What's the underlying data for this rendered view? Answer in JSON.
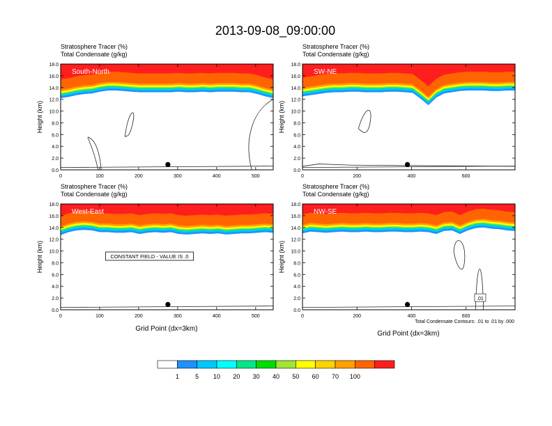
{
  "chart_data": {
    "type": "heatmap",
    "title": "2013-09-08_09:00:00",
    "panel_title_1": "Stratosphere Tracer   (%)",
    "panel_title_2": "Total Condensate   (g/kg)",
    "ylabel": "Height (km)",
    "xlabel": "Grid Point (dx=3km)",
    "y_ticks": [
      "0.0",
      "2.0",
      "4.0",
      "6.0",
      "8.0",
      "10.0",
      "12.0",
      "14.0",
      "16.0",
      "18.0"
    ],
    "ylim": [
      0,
      18
    ],
    "panels": [
      {
        "label": "South-North",
        "xlim": [
          0,
          545
        ],
        "x_ticks": [
          0,
          100,
          200,
          300,
          400,
          500
        ],
        "tropopause_km": [
          13.1,
          13.3,
          13.6,
          13.8,
          13.9,
          14.2,
          14.4,
          14.4,
          14.3,
          14.2,
          14.1,
          14.1,
          14.1,
          14.1,
          14.1,
          14.2,
          14.1,
          14.1,
          14.2,
          14.1,
          14.2,
          14.2,
          14.2,
          14.1,
          14.1,
          13.8,
          13.4,
          13.1
        ],
        "marker": 275,
        "note": ""
      },
      {
        "label": "SW-NE",
        "xlim": [
          0,
          780
        ],
        "x_ticks": [
          0,
          200,
          400,
          600
        ],
        "tropopause_km": [
          13.4,
          13.6,
          13.8,
          14.0,
          14.1,
          14.1,
          14.2,
          14.2,
          14.1,
          14.1,
          14.1,
          14.2,
          14.2,
          14.1,
          14.0,
          13.0,
          11.9,
          13.2,
          13.9,
          14.1,
          14.3,
          14.4,
          14.4,
          14.4,
          14.3,
          14.3,
          14.4,
          14.4
        ],
        "marker": 385,
        "note": ""
      },
      {
        "label": "West-East",
        "xlim": [
          0,
          545
        ],
        "x_ticks": [
          0,
          100,
          200,
          300,
          400,
          500
        ],
        "tropopause_km": [
          13.6,
          14.1,
          14.4,
          14.5,
          14.4,
          14.1,
          14.1,
          14.0,
          14.0,
          14.1,
          13.8,
          14.0,
          14.1,
          14.0,
          14.1,
          13.8,
          13.7,
          13.8,
          13.9,
          13.8,
          13.9,
          13.7,
          13.8,
          13.9,
          13.9,
          14.0,
          14.1,
          14.0
        ],
        "marker": 275,
        "note": "CONSTANT FIELD - VALUE IS .0"
      },
      {
        "label": "NW-SE",
        "xlim": [
          0,
          780
        ],
        "x_ticks": [
          0,
          200,
          400,
          600
        ],
        "tropopause_km": [
          13.9,
          14.2,
          14.1,
          14.0,
          14.1,
          14.2,
          14.1,
          14.1,
          14.2,
          14.1,
          14.1,
          14.2,
          14.2,
          14.1,
          14.1,
          14.2,
          14.1,
          13.8,
          14.3,
          14.4,
          13.8,
          14.4,
          14.8,
          14.9,
          14.7,
          14.6,
          14.4,
          14.3
        ],
        "marker": 385,
        "note": ""
      }
    ],
    "contour_note": "Total Condensate Contours: .01 to .01 by .000",
    "contour_label": ".01",
    "colorbar": {
      "labels": [
        "1",
        "5",
        "10",
        "20",
        "30",
        "40",
        "50",
        "60",
        "70",
        "100"
      ],
      "colors": [
        "#ffffff",
        "#1e90ff",
        "#00c8ff",
        "#00ffff",
        "#00e887",
        "#00dd00",
        "#a0e632",
        "#ffff00",
        "#ffd200",
        "#ffa000",
        "#ff6400",
        "#ff1e1e"
      ]
    }
  }
}
